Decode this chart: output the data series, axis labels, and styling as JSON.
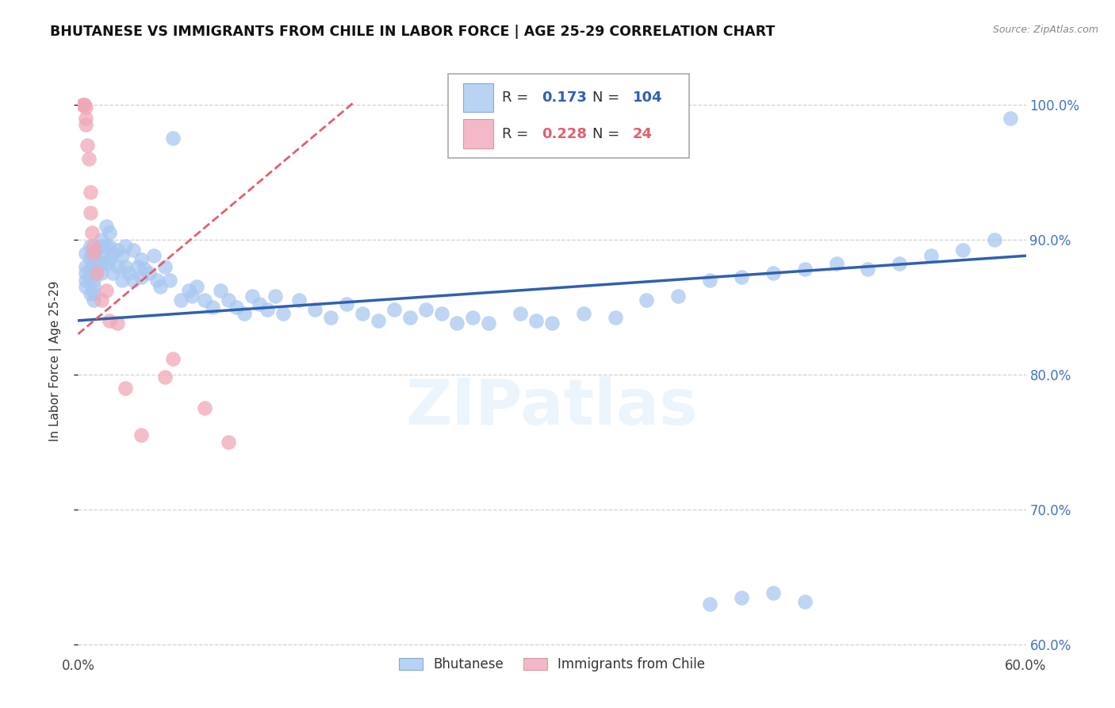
{
  "title": "BHUTANESE VS IMMIGRANTS FROM CHILE IN LABOR FORCE | AGE 25-29 CORRELATION CHART",
  "source_text": "Source: ZipAtlas.com",
  "ylabel": "In Labor Force | Age 25-29",
  "xlim": [
    0.0,
    0.6
  ],
  "ylim": [
    0.595,
    1.025
  ],
  "yticks": [
    0.6,
    0.7,
    0.8,
    0.9,
    1.0
  ],
  "ytick_labels": [
    "60.0%",
    "70.0%",
    "80.0%",
    "90.0%",
    "100.0%"
  ],
  "xticks": [
    0.0,
    0.1,
    0.2,
    0.3,
    0.4,
    0.5,
    0.6
  ],
  "xtick_labels": [
    "0.0%",
    "",
    "",
    "",
    "",
    "",
    "60.0%"
  ],
  "blue_color": "#a8c8f0",
  "pink_color": "#f0a8b8",
  "blue_line_color": "#3060b0",
  "pink_line_color": "#e06070",
  "legend_R1": "0.173",
  "legend_N1": "104",
  "legend_R2": "0.228",
  "legend_N2": "24",
  "blue_scatter_x": [
    0.005,
    0.005,
    0.005,
    0.005,
    0.005,
    0.008,
    0.008,
    0.008,
    0.008,
    0.008,
    0.008,
    0.01,
    0.01,
    0.01,
    0.01,
    0.01,
    0.01,
    0.01,
    0.012,
    0.012,
    0.012,
    0.015,
    0.015,
    0.015,
    0.015,
    0.015,
    0.018,
    0.018,
    0.018,
    0.02,
    0.02,
    0.02,
    0.022,
    0.022,
    0.025,
    0.025,
    0.028,
    0.028,
    0.03,
    0.03,
    0.032,
    0.035,
    0.035,
    0.038,
    0.04,
    0.04,
    0.042,
    0.045,
    0.048,
    0.05,
    0.052,
    0.055,
    0.058,
    0.06,
    0.065,
    0.07,
    0.072,
    0.075,
    0.08,
    0.085,
    0.09,
    0.095,
    0.1,
    0.105,
    0.11,
    0.115,
    0.12,
    0.125,
    0.13,
    0.14,
    0.15,
    0.16,
    0.17,
    0.18,
    0.19,
    0.2,
    0.21,
    0.22,
    0.23,
    0.24,
    0.25,
    0.26,
    0.28,
    0.29,
    0.3,
    0.32,
    0.34,
    0.36,
    0.38,
    0.4,
    0.42,
    0.44,
    0.46,
    0.48,
    0.5,
    0.52,
    0.54,
    0.56,
    0.4,
    0.42,
    0.44,
    0.46,
    0.58,
    0.59
  ],
  "blue_scatter_y": [
    0.88,
    0.875,
    0.89,
    0.87,
    0.865,
    0.885,
    0.878,
    0.872,
    0.895,
    0.86,
    0.888,
    0.89,
    0.882,
    0.875,
    0.87,
    0.865,
    0.86,
    0.855,
    0.893,
    0.885,
    0.878,
    0.9,
    0.895,
    0.888,
    0.882,
    0.875,
    0.91,
    0.895,
    0.882,
    0.905,
    0.895,
    0.885,
    0.89,
    0.875,
    0.892,
    0.88,
    0.888,
    0.87,
    0.895,
    0.88,
    0.875,
    0.892,
    0.87,
    0.88,
    0.885,
    0.872,
    0.878,
    0.875,
    0.888,
    0.87,
    0.865,
    0.88,
    0.87,
    0.975,
    0.855,
    0.862,
    0.858,
    0.865,
    0.855,
    0.85,
    0.862,
    0.855,
    0.85,
    0.845,
    0.858,
    0.852,
    0.848,
    0.858,
    0.845,
    0.855,
    0.848,
    0.842,
    0.852,
    0.845,
    0.84,
    0.848,
    0.842,
    0.848,
    0.845,
    0.838,
    0.842,
    0.838,
    0.845,
    0.84,
    0.838,
    0.845,
    0.842,
    0.855,
    0.858,
    0.87,
    0.872,
    0.875,
    0.878,
    0.882,
    0.878,
    0.882,
    0.888,
    0.892,
    0.63,
    0.635,
    0.638,
    0.632,
    0.9,
    0.99
  ],
  "pink_scatter_x": [
    0.003,
    0.004,
    0.004,
    0.005,
    0.005,
    0.005,
    0.006,
    0.007,
    0.008,
    0.008,
    0.009,
    0.01,
    0.01,
    0.012,
    0.015,
    0.018,
    0.02,
    0.025,
    0.03,
    0.04,
    0.055,
    0.06,
    0.08,
    0.095
  ],
  "pink_scatter_y": [
    1.0,
    1.0,
    1.0,
    0.998,
    0.99,
    0.985,
    0.97,
    0.96,
    0.935,
    0.92,
    0.905,
    0.895,
    0.89,
    0.875,
    0.855,
    0.862,
    0.84,
    0.838,
    0.79,
    0.755,
    0.798,
    0.812,
    0.775,
    0.75
  ],
  "blue_trend_x": [
    0.0,
    0.6
  ],
  "blue_trend_y": [
    0.84,
    0.888
  ],
  "pink_trend_x": [
    0.0,
    0.175
  ],
  "pink_trend_y": [
    0.83,
    1.002
  ],
  "watermark": "ZIPatlas",
  "background_color": "#ffffff",
  "grid_color": "#cccccc",
  "axis_label_color": "#4472c4",
  "pink_line_dashed": true
}
